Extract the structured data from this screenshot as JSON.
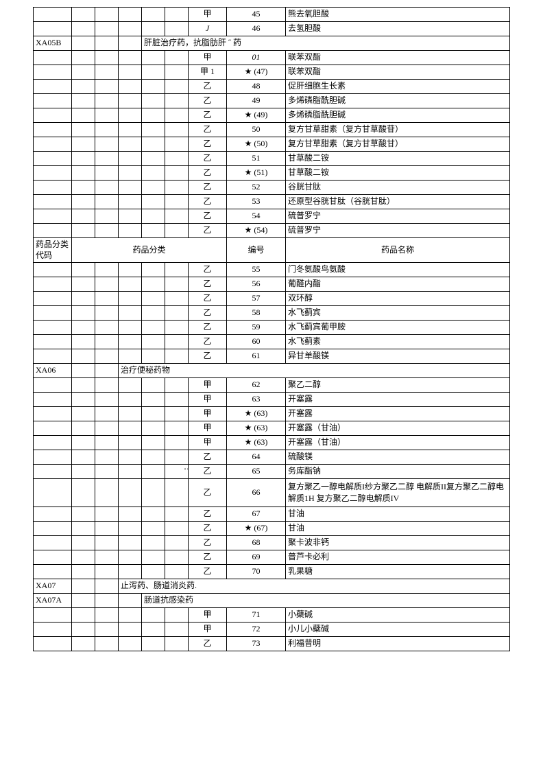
{
  "table": {
    "columns": [
      "col-a",
      "col-b",
      "col-c",
      "col-d",
      "col-e",
      "col-f",
      "col-g",
      "col-h",
      "col-i"
    ],
    "rows": [
      {
        "cells": [
          "",
          "",
          "",
          "",
          "",
          "",
          "甲",
          "45",
          "熊去氧胆酸"
        ]
      },
      {
        "cells": [
          "",
          "",
          "",
          "",
          "",
          "",
          "J",
          "46",
          "去氢胆酸"
        ],
        "italicCol": 6
      },
      {
        "cells": [
          "XA05B",
          "",
          "",
          "",
          "",
          "",
          "",
          "",
          ""
        ],
        "span": {
          "from": 4,
          "to": 8,
          "text": "肝脏治疗药，抗脂肪肝 ˝ 药"
        }
      },
      {
        "cells": [
          "",
          "",
          "",
          "",
          "",
          "",
          "甲",
          "01",
          "联苯双酯"
        ],
        "italicCol": 7
      },
      {
        "cells": [
          "",
          "",
          "",
          "",
          "",
          "",
          "甲 1",
          "★ (47)",
          "联苯双酯"
        ]
      },
      {
        "cells": [
          "",
          "",
          "",
          "",
          "",
          "",
          "乙",
          "48",
          "促肝细胞生长素"
        ]
      },
      {
        "cells": [
          "",
          "",
          "",
          "",
          "",
          "",
          "乙",
          "49",
          "多烯磷脂酰胆碱"
        ]
      },
      {
        "cells": [
          "",
          "",
          "",
          "",
          "",
          "",
          "乙",
          "★ (49)",
          "多烯磷脂酰胆碱"
        ]
      },
      {
        "cells": [
          "",
          "",
          "",
          "",
          "",
          "",
          "乙",
          "50",
          "复方甘草甜素（复方甘草酸苷）"
        ]
      },
      {
        "cells": [
          "",
          "",
          "",
          "",
          "",
          "",
          "乙",
          "★ (50)",
          "复方甘草甜素（复方甘草酸甘）"
        ]
      },
      {
        "cells": [
          "",
          "",
          "",
          "",
          "",
          "",
          "乙",
          "51",
          "甘草酸二铵"
        ]
      },
      {
        "cells": [
          "",
          "",
          "",
          "",
          "",
          "",
          "乙",
          "★ (51)",
          "甘草酸二铵"
        ]
      },
      {
        "cells": [
          "",
          "",
          "",
          "",
          "",
          "",
          "乙",
          "52",
          "谷胱甘肽"
        ]
      },
      {
        "cells": [
          "",
          "",
          "",
          "",
          "",
          "",
          "乙",
          "53",
          "还原型谷胱甘肽（谷胱甘肽）"
        ]
      },
      {
        "cells": [
          "",
          "",
          "",
          "",
          "",
          "",
          "乙",
          "54",
          "硫普罗宁"
        ]
      },
      {
        "cells": [
          "",
          "",
          "",
          "",
          "",
          "",
          "乙",
          "★ (54)",
          "硫普罗宁"
        ]
      },
      {
        "header": true,
        "cells": [
          "药品分类代码",
          "",
          "",
          "",
          "",
          "",
          "",
          "编号",
          "药品名称"
        ],
        "span": {
          "from": 1,
          "to": 6,
          "text": "药品分类",
          "center": true
        }
      },
      {
        "cells": [
          "",
          "",
          "",
          "",
          "",
          "",
          "乙",
          "55",
          "门冬氨酸鸟氨酸"
        ]
      },
      {
        "cells": [
          "",
          "",
          "",
          "",
          "",
          "",
          "乙",
          "56",
          "葡醛内酯"
        ]
      },
      {
        "cells": [
          "",
          "",
          "",
          "",
          "",
          "",
          "乙",
          "57",
          "双环醇"
        ]
      },
      {
        "cells": [
          "",
          "",
          "",
          "",
          "",
          "",
          "乙",
          "58",
          "水飞蓟宾"
        ]
      },
      {
        "cells": [
          "",
          "",
          "",
          "",
          "",
          "",
          "乙",
          "59",
          "水飞蓟宾葡甲胺"
        ]
      },
      {
        "cells": [
          "",
          "",
          "",
          "",
          "",
          "",
          "乙",
          "60",
          "水飞蓟素"
        ]
      },
      {
        "cells": [
          "",
          "",
          "",
          "",
          "",
          "",
          "乙",
          "61",
          "异甘单酸镁"
        ]
      },
      {
        "cells": [
          "XA06",
          "",
          "",
          "",
          "",
          "",
          "",
          "",
          ""
        ],
        "span": {
          "from": 3,
          "to": 8,
          "text": "治疗便秘药物"
        }
      },
      {
        "cells": [
          "",
          "",
          "",
          "",
          "",
          "",
          "甲",
          "62",
          "聚乙二醇"
        ]
      },
      {
        "cells": [
          "",
          "",
          "",
          "",
          "",
          "",
          "甲",
          "63",
          "开塞露"
        ]
      },
      {
        "cells": [
          "",
          "",
          "",
          "",
          "",
          "",
          "甲",
          "★ (63)",
          "开塞露"
        ]
      },
      {
        "cells": [
          "",
          "",
          "",
          "",
          "",
          "",
          "甲",
          "★ (63)",
          "开塞露（甘油）"
        ]
      },
      {
        "cells": [
          "",
          "",
          "",
          "",
          "",
          "",
          "甲",
          "★ (63)",
          "开塞露（甘油）"
        ]
      },
      {
        "cells": [
          "",
          "",
          "",
          "",
          "",
          "",
          "乙",
          "64",
          "硫酸镁"
        ]
      },
      {
        "cells": [
          "",
          "",
          "",
          "",
          "",
          "",
          "乙",
          "65",
          "务库酯钠"
        ],
        "dots": true
      },
      {
        "cells": [
          "",
          "",
          "",
          "",
          "",
          "",
          "乙",
          "66",
          "复方聚乙一醇电解质I纱方聚乙二醇 电解质II复方聚乙二醇电解质1H 复方聚乙二醇电解质IV"
        ],
        "multi": true
      },
      {
        "cells": [
          "",
          "",
          "",
          "",
          "",
          "",
          "乙",
          "67",
          "甘油"
        ]
      },
      {
        "cells": [
          "",
          "",
          "",
          "",
          "",
          "",
          "乙",
          "★ (67)",
          "甘油"
        ]
      },
      {
        "cells": [
          "",
          "",
          "",
          "",
          "",
          "",
          "乙",
          "68",
          "聚卡波非钙"
        ]
      },
      {
        "cells": [
          "",
          "",
          "",
          "",
          "",
          "",
          "乙",
          "69",
          "普芦卡必利"
        ]
      },
      {
        "cells": [
          "",
          "",
          "",
          "",
          "",
          "",
          "乙",
          "70",
          "乳果糖"
        ]
      },
      {
        "cells": [
          "XA07",
          "",
          "",
          "",
          "",
          "",
          "",
          "",
          ""
        ],
        "span": {
          "from": 3,
          "to": 8,
          "text": "止泻药、肠道消炎药."
        }
      },
      {
        "cells": [
          "XA07A",
          "",
          "",
          "",
          "",
          "",
          "",
          "",
          ""
        ],
        "span": {
          "from": 4,
          "to": 8,
          "text": "肠道抗感染药"
        }
      },
      {
        "cells": [
          "",
          "",
          "",
          "",
          "",
          "",
          "甲",
          "71",
          "小蘗碱"
        ]
      },
      {
        "cells": [
          "",
          "",
          "",
          "",
          "",
          "",
          "甲",
          "72",
          "小儿小蘗碱"
        ]
      },
      {
        "cells": [
          "",
          "",
          "",
          "",
          "",
          "",
          "乙",
          "73",
          "利福昔明"
        ]
      }
    ]
  }
}
